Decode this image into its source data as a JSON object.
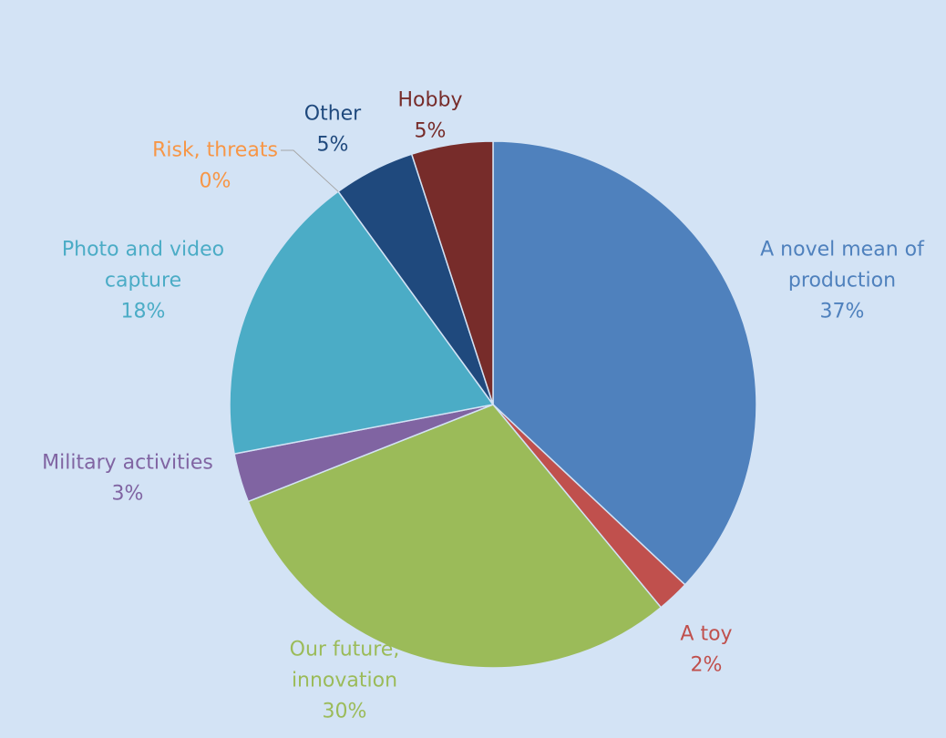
{
  "chart_data": {
    "type": "pie",
    "title": "",
    "slices": [
      {
        "name": "A novel mean of production",
        "label_lines": [
          "A novel mean of",
          "production"
        ],
        "value": 37,
        "value_label": "37%",
        "color": "#4f81bd"
      },
      {
        "name": "A toy",
        "label_lines": [
          "A toy"
        ],
        "value": 2,
        "value_label": "2%",
        "color": "#c0504d"
      },
      {
        "name": "Our future, innovation",
        "label_lines": [
          "Our future,",
          "innovation"
        ],
        "value": 30,
        "value_label": "30%",
        "color": "#9bbb59"
      },
      {
        "name": "Military activities",
        "label_lines": [
          "Military activities"
        ],
        "value": 3,
        "value_label": "3%",
        "color": "#8064a2"
      },
      {
        "name": "Photo and video capture",
        "label_lines": [
          "Photo and video",
          "capture"
        ],
        "value": 18,
        "value_label": "18%",
        "color": "#4bacc6"
      },
      {
        "name": "Risk, threats",
        "label_lines": [
          "Risk, threats"
        ],
        "value": 0,
        "value_label": "0%",
        "color": "#f79646"
      },
      {
        "name": "Other",
        "label_lines": [
          "Other"
        ],
        "value": 5,
        "value_label": "5%",
        "color": "#1f497d"
      },
      {
        "name": "Hobby",
        "label_lines": [
          "Hobby"
        ],
        "value": 5,
        "value_label": "5%",
        "color": "#772c2a"
      }
    ],
    "start_angle_deg": 0,
    "direction": "clockwise",
    "legend": "none",
    "data_labels": "outside"
  }
}
